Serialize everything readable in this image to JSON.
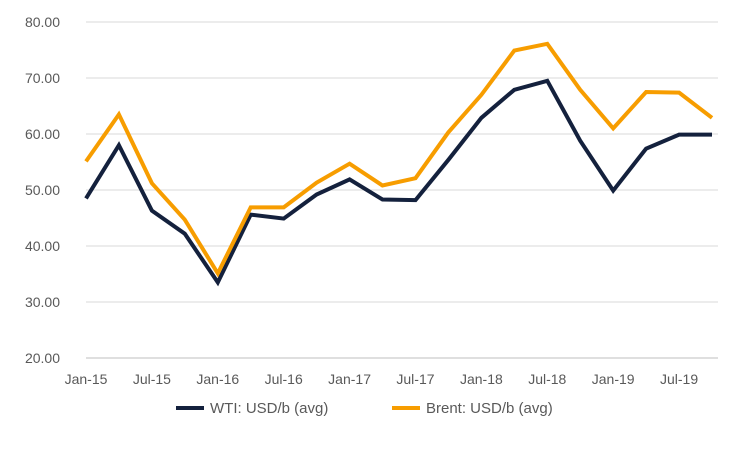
{
  "chart_data": {
    "type": "line",
    "title": "",
    "xlabel": "",
    "ylabel": "",
    "x": [
      "Jan-15",
      "Apr-15",
      "Jul-15",
      "Oct-15",
      "Jan-16",
      "Apr-16",
      "Jul-16",
      "Oct-16",
      "Jan-17",
      "Apr-17",
      "Jul-17",
      "Oct-17",
      "Jan-18",
      "Apr-18",
      "Jul-18",
      "Oct-18",
      "Jan-19",
      "Apr-19",
      "Jul-19",
      "Oct-19"
    ],
    "x_tick_labels": [
      "Jan-15",
      "Jul-15",
      "Jan-16",
      "Jul-16",
      "Jan-17",
      "Jul-17",
      "Jan-18",
      "Jul-18",
      "Jan-19",
      "Jul-19"
    ],
    "y_tick_labels": [
      "20.00",
      "30.00",
      "40.00",
      "50.00",
      "60.00",
      "70.00",
      "80.00"
    ],
    "ylim": [
      20,
      80
    ],
    "grid": true,
    "legend_position": "bottom",
    "series": [
      {
        "name": "WTI: USD/b (avg)",
        "color": "#14213d",
        "values": [
          48.5,
          58.0,
          46.3,
          42.2,
          33.5,
          45.6,
          44.9,
          49.2,
          51.9,
          48.3,
          48.2,
          55.4,
          62.9,
          67.9,
          69.5,
          58.8,
          49.9,
          57.4,
          59.9,
          59.9
        ]
      },
      {
        "name": "Brent: USD/b (avg)",
        "color": "#f79d00",
        "values": [
          55.1,
          63.5,
          51.2,
          44.7,
          35.1,
          46.9,
          46.9,
          51.3,
          54.7,
          50.8,
          52.1,
          60.3,
          67.0,
          74.9,
          76.1,
          67.9,
          61.0,
          67.5,
          67.4,
          62.9
        ]
      }
    ]
  }
}
